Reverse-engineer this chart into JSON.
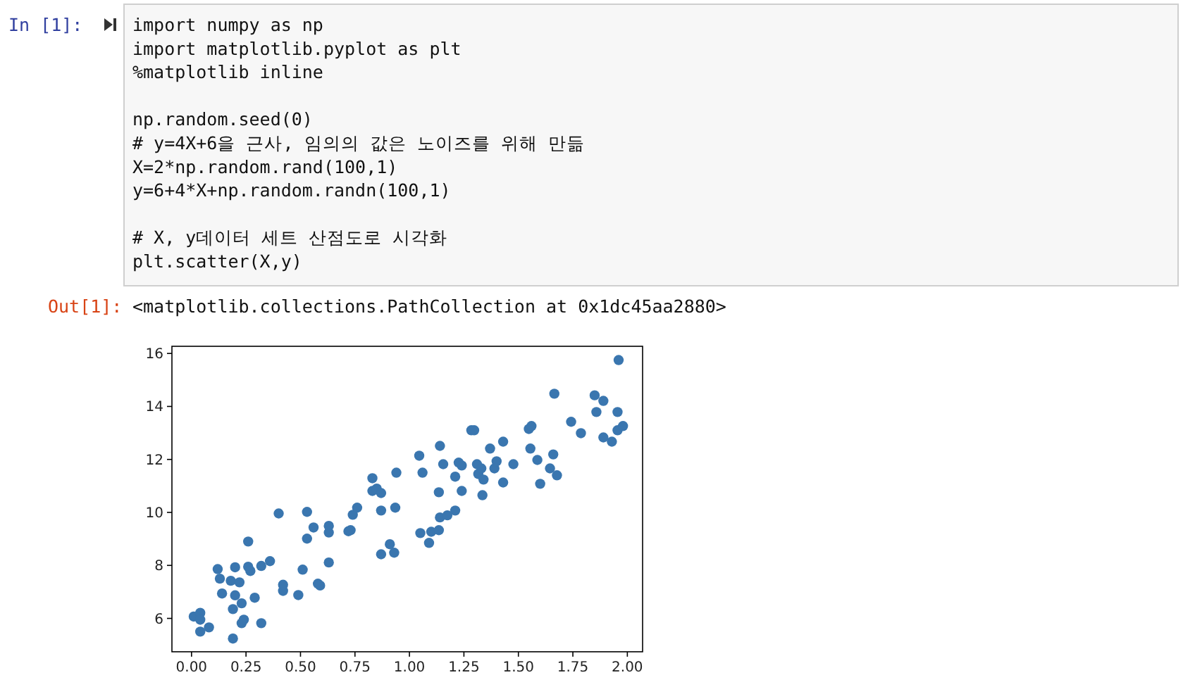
{
  "chart_data": {
    "type": "scatter",
    "color": "#3a76af",
    "marker": "circle",
    "grid": false,
    "annotations": [
      "In [1]:",
      "import numpy as np",
      "import matplotlib.pyplot as plt",
      "%matplotlib inline",
      "np.random.seed(0)",
      "# y=4X+6을 근사, 임의의 값은 노이즈를 위해 만듦",
      "X=2*np.random.rand(100,1)",
      "y=6+4*X+np.random.randn(100,1)",
      "# X, y데이터 세트 산점도로 시각화",
      "plt.scatter(X,y)",
      "Out[1]:",
      "<matplotlib.collections.PathCollection at 0x1dc45aa2880>"
    ],
    "xlim": [
      -0.09,
      2.07
    ],
    "ylim": [
      4.74,
      16.27
    ],
    "xticks": [
      {
        "value": 0,
        "label": "0.00"
      },
      {
        "value": 0.25,
        "label": "0.25"
      },
      {
        "value": 0.5,
        "label": "0.50"
      },
      {
        "value": 0.75,
        "label": "0.75"
      },
      {
        "value": 1,
        "label": "1.00"
      },
      {
        "value": 1.25,
        "label": "1.25"
      },
      {
        "value": 1.5,
        "label": "1.50"
      },
      {
        "value": 1.75,
        "label": "1.75"
      },
      {
        "value": 2,
        "label": "2.00"
      }
    ],
    "yticks": [
      6,
      8,
      10,
      12,
      14,
      16
    ],
    "x": [
      0.01,
      0.04,
      0.04,
      0.04,
      0.08,
      0.12,
      0.13,
      0.14,
      0.18,
      0.2,
      0.22,
      0.2,
      0.19,
      0.19,
      0.23,
      0.23,
      0.24,
      0.26,
      0.26,
      0.27,
      0.29,
      0.32,
      0.32,
      0.36,
      0.4,
      0.42,
      0.42,
      0.49,
      0.51,
      0.53,
      0.53,
      0.56,
      0.58,
      0.59,
      0.63,
      0.63,
      0.63,
      0.72,
      0.73,
      0.74,
      0.76,
      0.83,
      0.83,
      0.85,
      0.87,
      0.87,
      0.87,
      0.91,
      0.93,
      0.935,
      0.94,
      1.05,
      1.045,
      1.06,
      1.09,
      1.1,
      1.135,
      1.14,
      1.135,
      1.14,
      1.155,
      1.174,
      1.21,
      1.21,
      1.226,
      1.24,
      1.24,
      1.284,
      1.297,
      1.31,
      1.316,
      1.33,
      1.34,
      1.335,
      1.37,
      1.39,
      1.4,
      1.43,
      1.43,
      1.477,
      1.548,
      1.56,
      1.555,
      1.587,
      1.6,
      1.645,
      1.66,
      1.677,
      1.665,
      1.742,
      1.787,
      1.85,
      1.858,
      1.89,
      1.89,
      1.929,
      1.955,
      1.955,
      1.98,
      1.96
    ],
    "values": [
      6.07,
      6.21,
      5.95,
      5.5,
      5.66,
      7.86,
      7.5,
      6.94,
      7.42,
      7.93,
      7.36,
      6.87,
      6.35,
      5.24,
      6.57,
      5.82,
      5.95,
      8.9,
      7.95,
      7.79,
      6.78,
      7.98,
      5.82,
      8.16,
      9.96,
      7.04,
      7.27,
      6.88,
      7.84,
      10.02,
      9.01,
      9.43,
      7.31,
      7.24,
      9.24,
      9.49,
      8.11,
      9.29,
      9.33,
      9.91,
      10.18,
      11.29,
      10.81,
      10.9,
      10.73,
      10.07,
      8.42,
      8.8,
      8.48,
      10.18,
      11.5,
      9.22,
      12.14,
      11.5,
      8.85,
      9.27,
      9.33,
      9.81,
      10.76,
      12.51,
      11.82,
      9.89,
      10.07,
      11.35,
      11.88,
      11.77,
      10.81,
      13.1,
      13.1,
      11.82,
      11.45,
      11.66,
      11.24,
      10.65,
      12.41,
      11.66,
      11.93,
      12.67,
      11.13,
      11.82,
      13.15,
      13.26,
      12.41,
      11.98,
      11.08,
      11.66,
      12.19,
      11.4,
      14.48,
      13.42,
      12.99,
      14.42,
      13.79,
      14.21,
      12.83,
      12.67,
      13.79,
      13.1,
      13.26,
      15.75
    ]
  }
}
